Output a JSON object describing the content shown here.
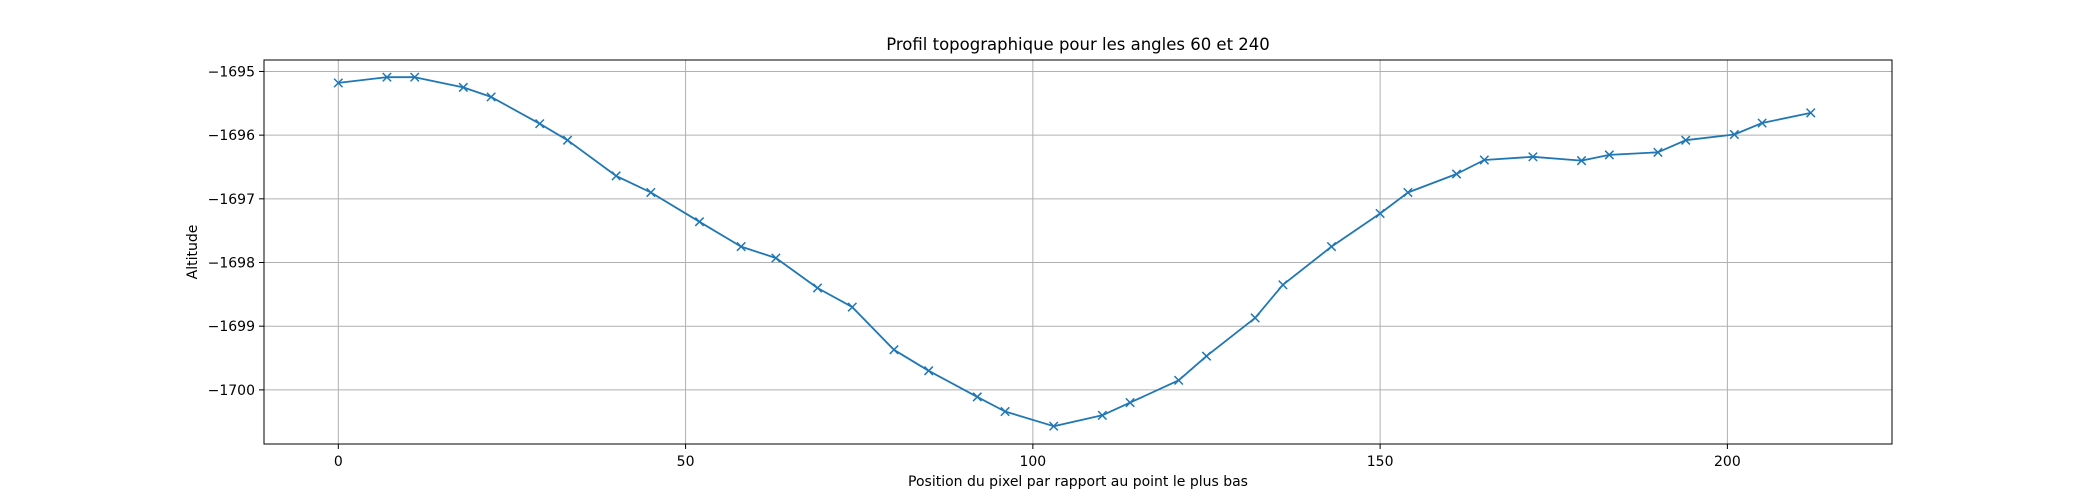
{
  "chart_data": {
    "type": "line",
    "title": "Profil topographique pour les angles 60 et 240",
    "xlabel": "Position du pixel par rapport au point le plus bas",
    "ylabel": "Altitude",
    "xlim": [
      -10.7,
      223.7
    ],
    "ylim": [
      -1700.85,
      -1694.82
    ],
    "xticks": [
      0,
      50,
      100,
      150,
      200
    ],
    "yticks": [
      -1695,
      -1696,
      -1697,
      -1698,
      -1699,
      -1700
    ],
    "grid": true,
    "series": [
      {
        "color": "#1f77b4",
        "marker": "x",
        "x": [
          0,
          7,
          11,
          18,
          22,
          29,
          33,
          40,
          45,
          52,
          58,
          63,
          69,
          74,
          80,
          85,
          92,
          96,
          103,
          110,
          114,
          121,
          125,
          132,
          136,
          143,
          150,
          154,
          161,
          165,
          172,
          179,
          183,
          190,
          194,
          201,
          205,
          212
        ],
        "y": [
          -1695.18,
          -1695.09,
          -1695.09,
          -1695.25,
          -1695.4,
          -1695.82,
          -1696.08,
          -1696.64,
          -1696.9,
          -1697.36,
          -1697.75,
          -1697.93,
          -1698.4,
          -1698.7,
          -1699.37,
          -1699.7,
          -1700.11,
          -1700.34,
          -1700.57,
          -1700.4,
          -1700.2,
          -1699.85,
          -1699.47,
          -1698.87,
          -1698.35,
          -1697.75,
          -1697.23,
          -1696.9,
          -1696.61,
          -1696.39,
          -1696.34,
          -1696.4,
          -1696.31,
          -1696.27,
          -1696.08,
          -1695.99,
          -1695.81,
          -1695.65
        ]
      }
    ]
  }
}
